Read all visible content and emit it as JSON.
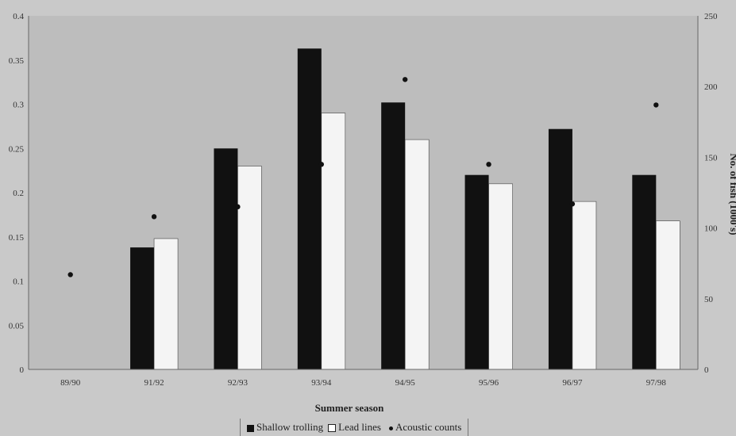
{
  "chart_data": {
    "type": "bar",
    "categories": [
      "89/90",
      "91/92",
      "92/93",
      "93/94",
      "94/95",
      "95/96",
      "96/97",
      "97/98"
    ],
    "series": [
      {
        "name": "Shallow trolling",
        "type": "bar",
        "axis": "left",
        "color": "#111111",
        "values": [
          null,
          0.138,
          0.25,
          0.363,
          0.302,
          0.22,
          0.272,
          0.22
        ]
      },
      {
        "name": "Lead lines",
        "type": "bar",
        "axis": "left",
        "color": "#f4f4f4",
        "values": [
          null,
          0.148,
          0.23,
          0.29,
          0.26,
          0.21,
          0.19,
          0.168
        ]
      },
      {
        "name": "Acoustic counts",
        "type": "scatter",
        "axis": "right",
        "color": "#111111",
        "values": [
          67,
          108,
          115,
          145,
          205,
          145,
          117,
          187
        ]
      }
    ],
    "xlabel": "Summer season",
    "ylabel_right": "No. of fish (1000's)",
    "ylim_left": [
      0,
      0.4
    ],
    "yticks_left": [
      "0",
      "0.05",
      "0.1",
      "0.15",
      "0.2",
      "0.25",
      "0.3",
      "0.35",
      "0.4"
    ],
    "ylim_right": [
      0,
      250
    ],
    "yticks_right": [
      "0",
      "50",
      "100",
      "150",
      "200",
      "250"
    ],
    "grid": false,
    "legend_position": "bottom"
  },
  "legend": {
    "shallow": "Shallow trolling",
    "lead": "Lead lines",
    "acoustic": "Acoustic counts"
  }
}
